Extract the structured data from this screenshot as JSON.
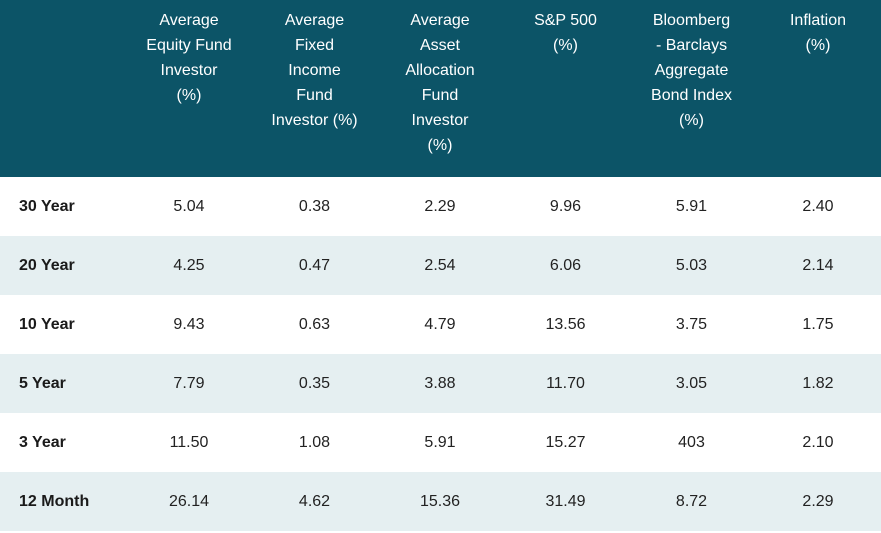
{
  "table": {
    "columns": [
      {
        "key": "period",
        "label": ""
      },
      {
        "key": "equity",
        "label": "Average\nEquity Fund\nInvestor\n(%)"
      },
      {
        "key": "fixed_income",
        "label": "Average\nFixed\nIncome\nFund\nInvestor   (%)"
      },
      {
        "key": "asset_allocation",
        "label": "Average\nAsset\nAllocation\nFund\nInvestor\n(%)"
      },
      {
        "key": "sp500",
        "label": "S&P 500\n(%)"
      },
      {
        "key": "bond_index",
        "label": "Bloomberg\n- Barclays\nAggregate\nBond Index\n(%)"
      },
      {
        "key": "inflation",
        "label": "Inflation\n(%)"
      }
    ],
    "rows": [
      {
        "period": "30 Year",
        "equity": "5.04",
        "fixed_income": "0.38",
        "asset_allocation": "2.29",
        "sp500": "9.96",
        "bond_index": "5.91",
        "inflation": "2.40"
      },
      {
        "period": "20 Year",
        "equity": "4.25",
        "fixed_income": "0.47",
        "asset_allocation": "2.54",
        "sp500": "6.06",
        "bond_index": "5.03",
        "inflation": "2.14"
      },
      {
        "period": "10 Year",
        "equity": "9.43",
        "fixed_income": "0.63",
        "asset_allocation": "4.79",
        "sp500": "13.56",
        "bond_index": "3.75",
        "inflation": "1.75"
      },
      {
        "period": "5 Year",
        "equity": "7.79",
        "fixed_income": "0.35",
        "asset_allocation": "3.88",
        "sp500": "11.70",
        "bond_index": "3.05",
        "inflation": "1.82"
      },
      {
        "period": "3 Year",
        "equity": "11.50",
        "fixed_income": "1.08",
        "asset_allocation": "5.91",
        "sp500": "15.27",
        "bond_index": "403",
        "inflation": "2.10"
      },
      {
        "period": "12 Month",
        "equity": "26.14",
        "fixed_income": "4.62",
        "asset_allocation": "15.36",
        "sp500": "31.49",
        "bond_index": "8.72",
        "inflation": "2.29"
      }
    ]
  },
  "colors": {
    "header_bg": "#0c5467",
    "header_text": "#ffffff",
    "stripe_bg": "#e5eff1",
    "row_bg": "#ffffff"
  }
}
